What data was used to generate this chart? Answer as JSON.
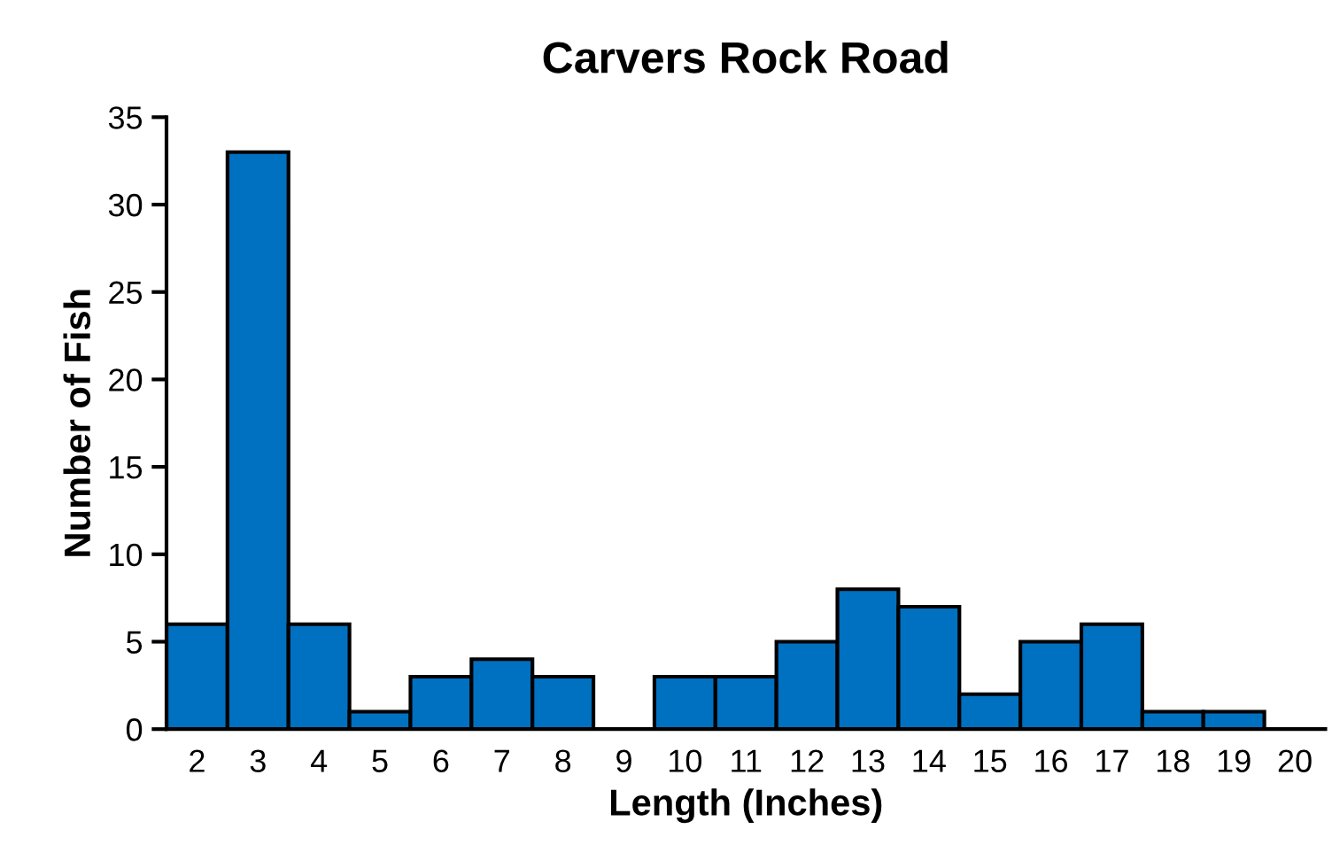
{
  "chart_data": {
    "type": "bar",
    "title": "Carvers Rock Road",
    "xlabel": "Length (Inches)",
    "ylabel": "Number of Fish",
    "categories": [
      "2",
      "3",
      "4",
      "5",
      "6",
      "7",
      "8",
      "9",
      "10",
      "11",
      "12",
      "13",
      "14",
      "15",
      "16",
      "17",
      "18",
      "19",
      "20"
    ],
    "values": [
      6,
      33,
      6,
      1,
      3,
      4,
      3,
      0,
      3,
      3,
      5,
      8,
      7,
      2,
      5,
      6,
      1,
      1,
      0
    ],
    "color": "#0070c0",
    "ylim": [
      0,
      35
    ],
    "yticks": [
      0,
      5,
      10,
      15,
      20,
      25,
      30,
      35
    ],
    "grid": false,
    "legend": false
  }
}
